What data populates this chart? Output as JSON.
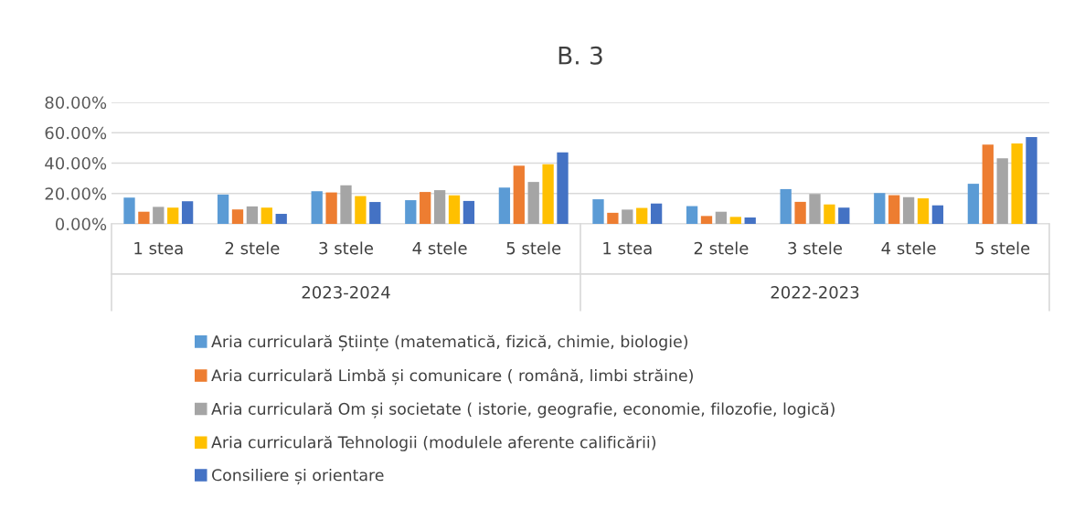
{
  "chart_data": {
    "type": "bar",
    "title": "B. 3",
    "categories": [
      "1 stea",
      "2 stele",
      "3 stele",
      "4 stele",
      "5 stele",
      "1 stea",
      "2 stele",
      "3 stele",
      "4 stele",
      "5 stele"
    ],
    "annotations": [
      "2023-2024",
      "2022-2023"
    ],
    "series": [
      {
        "name": "Aria curriculară Științe (matematică, fizică, chimie, biologie)",
        "color": "#5b9bd5",
        "values": [
          17.3,
          19.3,
          21.5,
          15.6,
          23.9,
          16.2,
          11.7,
          22.9,
          20.3,
          26.4
        ]
      },
      {
        "name": "Aria curriculară Limbă și comunicare ( română, limbi străine)",
        "color": "#ed7d31",
        "values": [
          8.0,
          9.5,
          20.7,
          21.0,
          38.3,
          7.3,
          5.2,
          14.5,
          18.9,
          52.2
        ]
      },
      {
        "name": "Aria curriculară Om și societate ( istorie, geografie, economie, filozofie, logică)",
        "color": "#a5a5a5",
        "values": [
          11.2,
          11.5,
          25.4,
          22.2,
          27.6,
          9.4,
          8.0,
          19.7,
          17.6,
          43.2
        ]
      },
      {
        "name": "Aria curriculară Tehnologii (modulele aferente calificării)",
        "color": "#ffc000",
        "values": [
          10.7,
          10.7,
          18.3,
          18.8,
          39.3,
          10.5,
          4.6,
          12.8,
          16.8,
          53.0
        ]
      },
      {
        "name": "Consiliere și orientare",
        "color": "#4472c4",
        "values": [
          14.9,
          6.6,
          14.4,
          15.1,
          47.1,
          13.4,
          4.2,
          10.7,
          12.2,
          57.2
        ]
      }
    ],
    "ylim": [
      0,
      80
    ],
    "yticks": [
      {
        "value": 0,
        "label": "0.00%"
      },
      {
        "value": 20,
        "label": "20.00%"
      },
      {
        "value": 40,
        "label": "40.00%"
      },
      {
        "value": 60,
        "label": "60.00%"
      },
      {
        "value": 80,
        "label": "80.00%"
      }
    ],
    "grid": "y",
    "legend": "bottom"
  }
}
